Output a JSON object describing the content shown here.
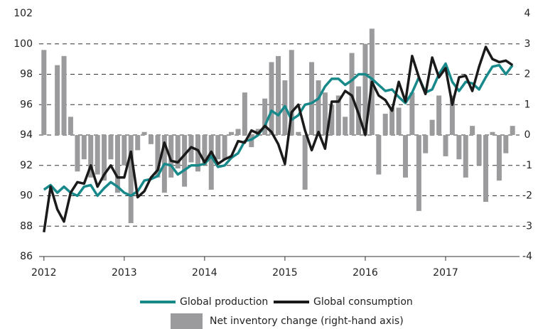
{
  "chart_data": {
    "type": "combo",
    "x": [
      2012,
      2012.083,
      2012.167,
      2012.25,
      2012.333,
      2012.417,
      2012.5,
      2012.583,
      2012.667,
      2012.75,
      2012.833,
      2012.917,
      2013,
      2013.083,
      2013.167,
      2013.25,
      2013.333,
      2013.417,
      2013.5,
      2013.583,
      2013.667,
      2013.75,
      2013.833,
      2013.917,
      2014,
      2014.083,
      2014.167,
      2014.25,
      2014.333,
      2014.417,
      2014.5,
      2014.583,
      2014.667,
      2014.75,
      2014.833,
      2014.917,
      2015,
      2015.083,
      2015.167,
      2015.25,
      2015.333,
      2015.417,
      2015.5,
      2015.583,
      2015.667,
      2015.75,
      2015.833,
      2015.917,
      2016,
      2016.083,
      2016.167,
      2016.25,
      2016.333,
      2016.417,
      2016.5,
      2016.583,
      2016.667,
      2016.75,
      2016.833,
      2016.917,
      2017,
      2017.083,
      2017.167,
      2017.25,
      2017.333,
      2017.417,
      2017.5,
      2017.583,
      2017.667,
      2017.75,
      2017.833
    ],
    "xlim": [
      2011.94,
      2017.92
    ],
    "xticks": [
      2012,
      2013,
      2014,
      2015,
      2016,
      2017
    ],
    "ylim": [
      86,
      102
    ],
    "yticks": [
      86,
      88,
      90,
      92,
      94,
      96,
      98,
      100,
      102
    ],
    "y2lim": [
      -4,
      4
    ],
    "y2ticks": [
      -4,
      -3,
      -2,
      -1,
      0,
      1,
      2,
      3,
      4
    ],
    "grid": true,
    "series": [
      {
        "name": "Global production",
        "type": "line",
        "color": "#17898a",
        "values": [
          90.4,
          90.7,
          90.2,
          90.6,
          90.2,
          90.0,
          90.6,
          90.7,
          90.0,
          90.5,
          90.9,
          90.6,
          90.2,
          90.0,
          90.3,
          91.0,
          91.1,
          91.3,
          92.1,
          92.0,
          91.4,
          91.7,
          92.0,
          92.0,
          92.1,
          92.6,
          91.9,
          92.0,
          92.5,
          92.8,
          93.6,
          93.7,
          94.0,
          94.6,
          95.6,
          95.3,
          95.9,
          95.0,
          95.3,
          96.0,
          96.1,
          96.4,
          97.2,
          97.7,
          97.7,
          97.3,
          97.6,
          98.0,
          98.0,
          97.7,
          97.3,
          96.9,
          97.0,
          96.5,
          96.1,
          96.8,
          97.8,
          96.8,
          97.0,
          98.0,
          98.7,
          97.5,
          96.9,
          97.5,
          97.4,
          97.0,
          97.8,
          98.5,
          98.6,
          98.0,
          98.6
        ]
      },
      {
        "name": "Global consumption",
        "type": "line",
        "color": "#1a1a1a",
        "values": [
          87.6,
          90.6,
          89.1,
          88.3,
          90.2,
          90.9,
          90.8,
          92.0,
          90.6,
          91.4,
          92.0,
          91.2,
          91.2,
          92.9,
          89.9,
          90.3,
          91.2,
          91.7,
          93.5,
          92.3,
          92.2,
          92.7,
          93.2,
          93.0,
          92.2,
          92.9,
          92.1,
          92.4,
          92.6,
          93.6,
          93.5,
          94.3,
          94.1,
          94.6,
          94.2,
          93.4,
          92.1,
          95.5,
          96.0,
          94.3,
          93.0,
          94.2,
          93.1,
          96.2,
          96.2,
          96.9,
          96.6,
          95.4,
          94.0,
          97.5,
          96.6,
          96.3,
          95.6,
          97.5,
          96.2,
          99.2,
          97.8,
          96.7,
          99.1,
          97.8,
          98.4,
          96.0,
          97.8,
          97.9,
          96.9,
          98.5,
          99.8,
          99.0,
          98.8,
          98.9,
          98.6
        ]
      },
      {
        "name": "Net inventory change (right-hand axis)",
        "type": "bar",
        "axis": "y2",
        "color": "#9b9b9d",
        "values": [
          2.8,
          0,
          2.3,
          2.6,
          0.6,
          -1.2,
          -0.8,
          -1.4,
          -1.3,
          -1.5,
          -0.8,
          -1.9,
          -1.0,
          -2.9,
          -0.5,
          0.1,
          -0.3,
          -1.4,
          -1.9,
          -1.4,
          -1.1,
          -1.7,
          -0.9,
          -1.2,
          -1.0,
          -1.8,
          -0.8,
          -0.8,
          0.1,
          0.2,
          1.4,
          -0.4,
          0.2,
          1.2,
          2.4,
          2.6,
          1.8,
          2.8,
          0.1,
          -1.8,
          2.4,
          1.8,
          1.4,
          1.0,
          1.3,
          0.6,
          2.7,
          1.6,
          3.0,
          3.5,
          -1.3,
          0.7,
          0.9,
          0.9,
          -1.4,
          1.4,
          -2.5,
          -0.6,
          0.5,
          1.3,
          -0.7,
          1.3,
          -0.8,
          -1.4,
          0.3,
          -1.0,
          -2.2,
          0.1,
          -1.5,
          -0.6,
          0.3
        ]
      }
    ]
  }
}
